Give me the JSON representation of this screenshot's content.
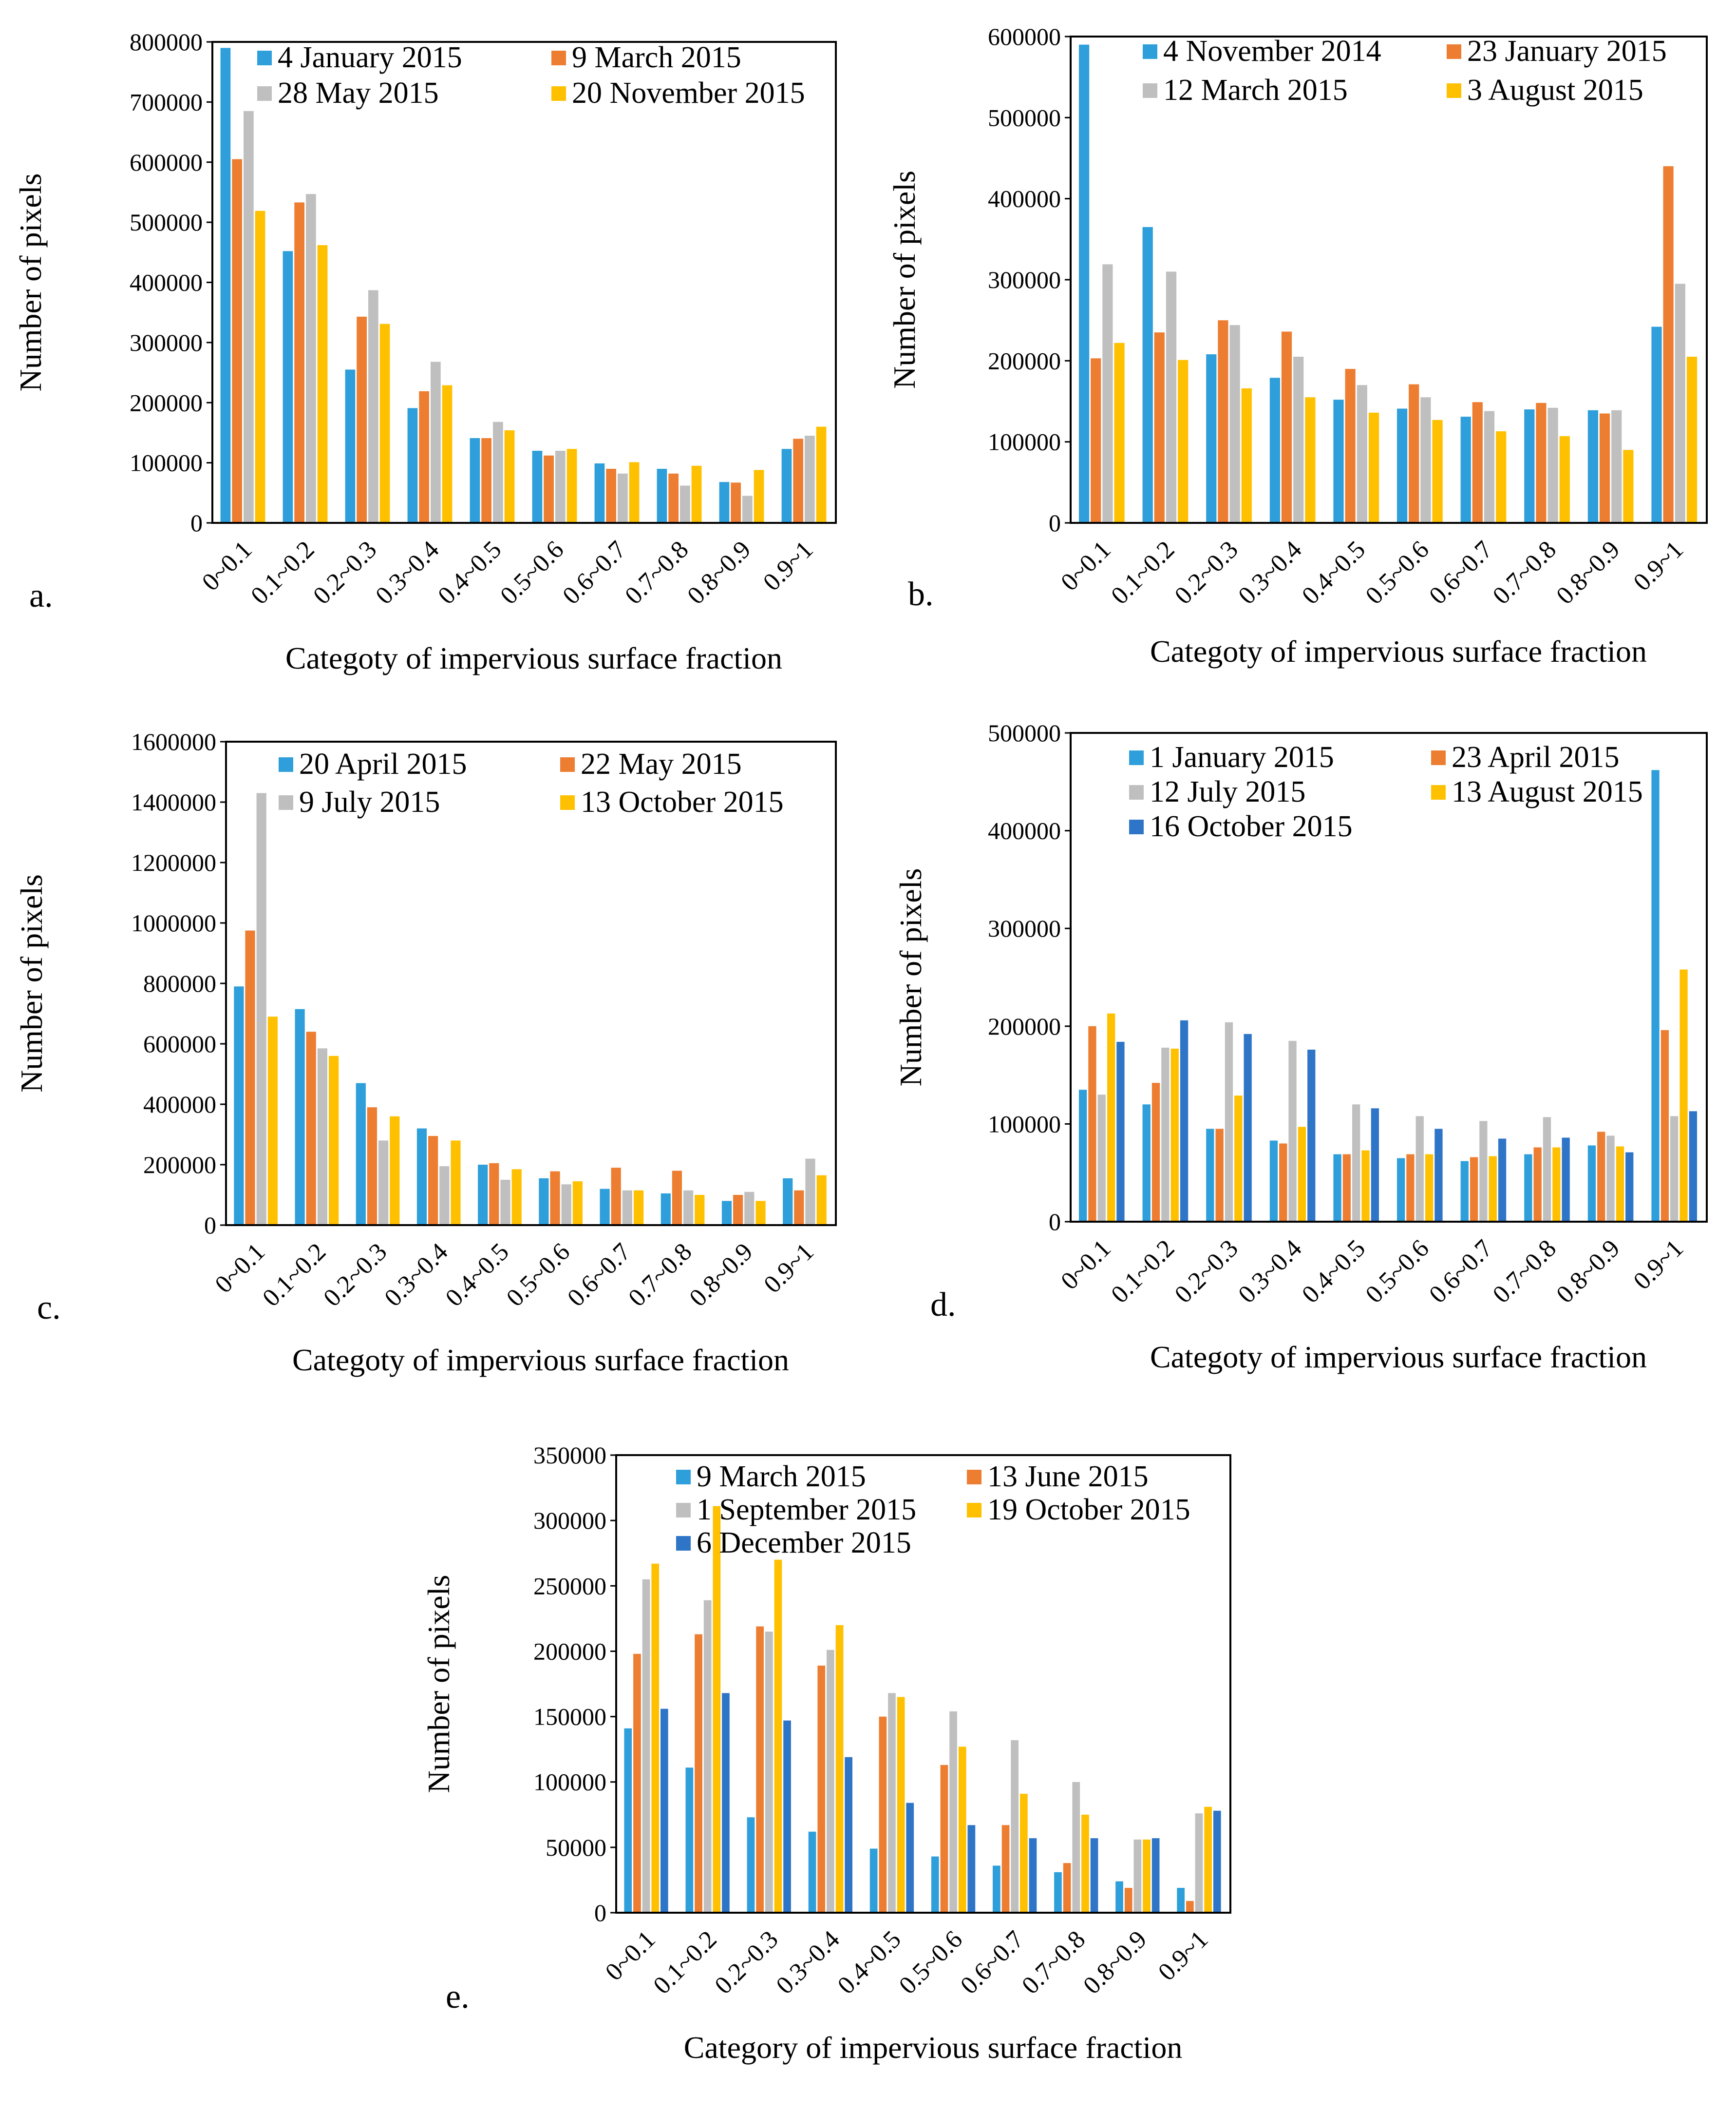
{
  "figure": {
    "colors": {
      "blue": "#2E9FDA",
      "orange": "#ED7D31",
      "gray": "#BFBFBF",
      "yellow": "#FFC000",
      "darkblue": "#2E75C8"
    }
  },
  "chart_data": [
    {
      "type": "bar",
      "panel_label": "a.",
      "title": "",
      "xlabel": "Categoty of impervious surface fraction",
      "ylabel": "Number of pixels",
      "ylim": [
        0,
        800000
      ],
      "yticks": [
        0,
        100000,
        200000,
        300000,
        400000,
        500000,
        600000,
        700000,
        800000
      ],
      "ytick_labels": [
        "0",
        "100000",
        "200000",
        "300000",
        "400000",
        "500000",
        "600000",
        "700000",
        "800000"
      ],
      "categories": [
        "0~0.1",
        "0.1~0.2",
        "0.2~0.3",
        "0.3~0.4",
        "0.4~0.5",
        "0.5~0.6",
        "0.6~0.7",
        "0.7~0.8",
        "0.8~0.9",
        "0.9~1"
      ],
      "legend_position": "top-right",
      "series": [
        {
          "name": "4 January 2015",
          "color": "#2E9FDA",
          "values": [
            790000,
            452000,
            255000,
            191000,
            141000,
            120000,
            99000,
            90000,
            68000,
            123000
          ]
        },
        {
          "name": "9 March 2015",
          "color": "#ED7D31",
          "values": [
            605000,
            533000,
            343000,
            219000,
            141000,
            112000,
            90000,
            82000,
            67000,
            140000
          ]
        },
        {
          "name": "28 May 2015",
          "color": "#BFBFBF",
          "values": [
            685000,
            547000,
            387000,
            268000,
            168000,
            120000,
            82000,
            62000,
            45000,
            145000
          ]
        },
        {
          "name": "20 November 2015",
          "color": "#FFC000",
          "values": [
            519000,
            462000,
            331000,
            229000,
            154000,
            123000,
            101000,
            95000,
            88000,
            160000
          ]
        }
      ]
    },
    {
      "type": "bar",
      "panel_label": "b.",
      "title": "",
      "xlabel": "Categoty of impervious surface fraction",
      "ylabel": "Number of pixels",
      "ylim": [
        0,
        600000
      ],
      "yticks": [
        0,
        100000,
        200000,
        300000,
        400000,
        500000,
        600000
      ],
      "ytick_labels": [
        "0",
        "100000",
        "200000",
        "300000",
        "400000",
        "500000",
        "600000"
      ],
      "categories": [
        "0~0.1",
        "0.1~0.2",
        "0.2~0.3",
        "0.3~0.4",
        "0.4~0.5",
        "0.5~0.6",
        "0.6~0.7",
        "0.7~0.8",
        "0.8~0.9",
        "0.9~1"
      ],
      "legend_position": "top-right",
      "series": [
        {
          "name": "4 November 2014",
          "color": "#2E9FDA",
          "values": [
            590000,
            365000,
            208000,
            179000,
            152000,
            141000,
            131000,
            140000,
            139000,
            242000
          ]
        },
        {
          "name": "23 January 2015",
          "color": "#ED7D31",
          "values": [
            203000,
            235000,
            250000,
            236000,
            190000,
            171000,
            149000,
            148000,
            135000,
            440000
          ]
        },
        {
          "name": "12 March 2015",
          "color": "#BFBFBF",
          "values": [
            319000,
            310000,
            244000,
            205000,
            170000,
            155000,
            138000,
            142000,
            139000,
            295000
          ]
        },
        {
          "name": "3 August 2015",
          "color": "#FFC000",
          "values": [
            222000,
            201000,
            166000,
            155000,
            136000,
            127000,
            113000,
            107000,
            90000,
            205000
          ]
        }
      ]
    },
    {
      "type": "bar",
      "panel_label": "c.",
      "title": "",
      "xlabel": "Categoty of impervious surface fraction",
      "ylabel": "Number of pixels",
      "ylim": [
        0,
        1600000
      ],
      "yticks": [
        0,
        200000,
        400000,
        600000,
        800000,
        1000000,
        1200000,
        1400000,
        1600000
      ],
      "ytick_labels": [
        "0",
        "200000",
        "400000",
        "600000",
        "800000",
        "1000000",
        "1200000",
        "1400000",
        "1600000"
      ],
      "categories": [
        "0~0.1",
        "0.1~0.2",
        "0.2~0.3",
        "0.3~0.4",
        "0.4~0.5",
        "0.5~0.6",
        "0.6~0.7",
        "0.7~0.8",
        "0.8~0.9",
        "0.9~1"
      ],
      "legend_position": "top-right",
      "series": [
        {
          "name": "20 April 2015",
          "color": "#2E9FDA",
          "values": [
            790000,
            715000,
            470000,
            320000,
            200000,
            155000,
            120000,
            105000,
            80000,
            155000
          ]
        },
        {
          "name": "22 May 2015",
          "color": "#ED7D31",
          "values": [
            975000,
            640000,
            390000,
            295000,
            205000,
            178000,
            190000,
            180000,
            100000,
            115000
          ]
        },
        {
          "name": "9 July 2015",
          "color": "#BFBFBF",
          "values": [
            1430000,
            585000,
            280000,
            195000,
            150000,
            135000,
            115000,
            115000,
            110000,
            220000
          ]
        },
        {
          "name": "13 October 2015",
          "color": "#FFC000",
          "values": [
            690000,
            560000,
            360000,
            280000,
            185000,
            145000,
            115000,
            100000,
            80000,
            165000
          ]
        }
      ]
    },
    {
      "type": "bar",
      "panel_label": "d.",
      "title": "",
      "xlabel": "Categoty of impervious surface fraction",
      "ylabel": "Number of pixels",
      "ylim": [
        0,
        500000
      ],
      "yticks": [
        0,
        100000,
        200000,
        300000,
        400000,
        500000
      ],
      "ytick_labels": [
        "0",
        "100000",
        "200000",
        "300000",
        "400000",
        "500000"
      ],
      "categories": [
        "0~0.1",
        "0.1~0.2",
        "0.2~0.3",
        "0.3~0.4",
        "0.4~0.5",
        "0.5~0.6",
        "0.6~0.7",
        "0.7~0.8",
        "0.8~0.9",
        "0.9~1"
      ],
      "legend_position": "top-right",
      "series": [
        {
          "name": "1 January 2015",
          "color": "#2E9FDA",
          "values": [
            135000,
            120000,
            95000,
            83000,
            69000,
            65000,
            62000,
            69000,
            78000,
            462000
          ]
        },
        {
          "name": "23 April 2015",
          "color": "#ED7D31",
          "values": [
            200000,
            142000,
            95000,
            80000,
            69000,
            69000,
            66000,
            76000,
            92000,
            196000
          ]
        },
        {
          "name": "12 July 2015",
          "color": "#BFBFBF",
          "values": [
            130000,
            178000,
            204000,
            185000,
            120000,
            108000,
            103000,
            107000,
            88000,
            108000
          ]
        },
        {
          "name": "13 August 2015",
          "color": "#FFC000",
          "values": [
            213000,
            177000,
            129000,
            97000,
            73000,
            69000,
            67000,
            76000,
            77000,
            258000
          ]
        },
        {
          "name": "16 October 2015",
          "color": "#2E75C8",
          "values": [
            184000,
            206000,
            192000,
            176000,
            116000,
            95000,
            85000,
            86000,
            71000,
            113000
          ]
        }
      ]
    },
    {
      "type": "bar",
      "panel_label": "e.",
      "title": "",
      "xlabel": "Category of impervious surface fraction",
      "ylabel": "Number of pixels",
      "ylim": [
        0,
        350000
      ],
      "yticks": [
        0,
        50000,
        100000,
        150000,
        200000,
        250000,
        300000,
        350000
      ],
      "ytick_labels": [
        "0",
        "50000",
        "100000",
        "150000",
        "200000",
        "250000",
        "300000",
        "350000"
      ],
      "categories": [
        "0~0.1",
        "0.1~0.2",
        "0.2~0.3",
        "0.3~0.4",
        "0.4~0.5",
        "0.5~0.6",
        "0.6~0.7",
        "0.7~0.8",
        "0.8~0.9",
        "0.9~1"
      ],
      "legend_position": "top-right",
      "series": [
        {
          "name": "9 March 2015",
          "color": "#2E9FDA",
          "values": [
            141000,
            111000,
            73000,
            62000,
            49000,
            43000,
            36000,
            31000,
            24000,
            19000
          ]
        },
        {
          "name": "13 June 2015",
          "color": "#ED7D31",
          "values": [
            198000,
            213000,
            219000,
            189000,
            150000,
            113000,
            67000,
            38000,
            19000,
            9000
          ]
        },
        {
          "name": "1 September 2015",
          "color": "#BFBFBF",
          "values": [
            255000,
            239000,
            215000,
            201000,
            168000,
            154000,
            132000,
            100000,
            56000,
            76000
          ]
        },
        {
          "name": "19 October 2015",
          "color": "#FFC000",
          "values": [
            267000,
            311000,
            270000,
            220000,
            165000,
            127000,
            91000,
            75000,
            56000,
            81000
          ]
        },
        {
          "name": "6 December 2015",
          "color": "#2E75C8",
          "values": [
            156000,
            168000,
            147000,
            119000,
            84000,
            67000,
            57000,
            57000,
            57000,
            78000
          ]
        }
      ]
    }
  ]
}
